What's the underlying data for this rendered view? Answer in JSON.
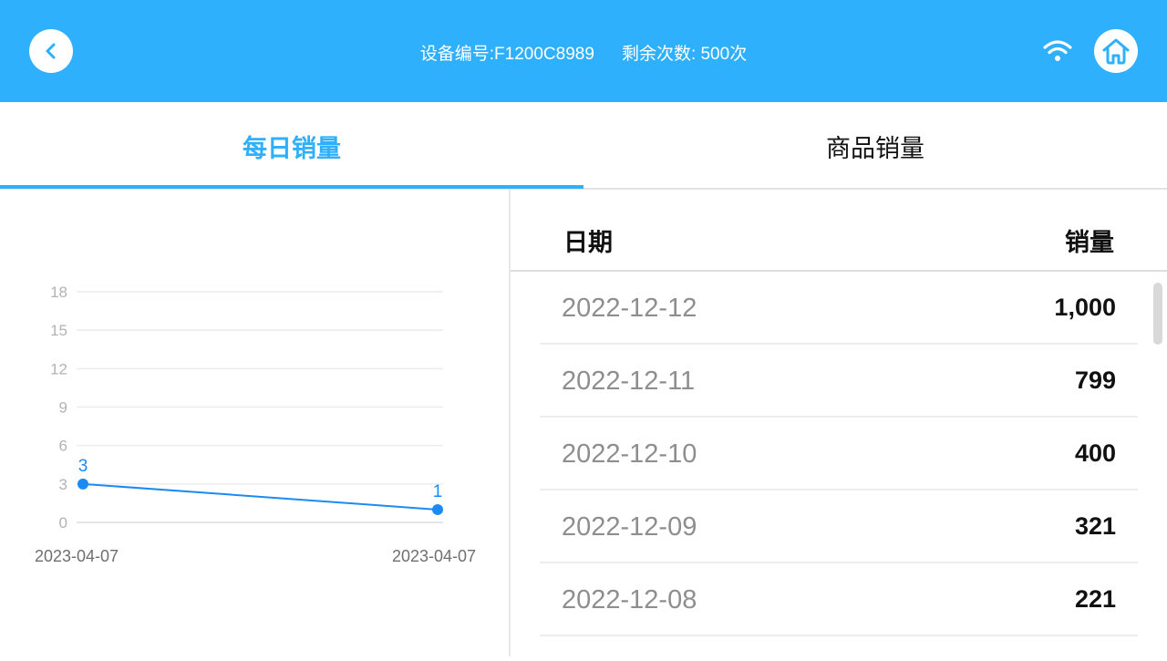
{
  "header": {
    "device_label": "设备编号:F1200C8989",
    "remaining_label": "剩余次数: 500次"
  },
  "tabs": [
    {
      "label": "每日销量",
      "active": true
    },
    {
      "label": "商品销量",
      "active": false
    }
  ],
  "colors": {
    "accent": "#2fb0fd",
    "line": "#1b8af2",
    "grid": "#ececec"
  },
  "chart_data": {
    "type": "line",
    "categories": [
      "2023-04-07",
      "2023-04-07"
    ],
    "series": [
      {
        "values": [
          3,
          1
        ]
      }
    ],
    "ylim": [
      0,
      18
    ],
    "yticks": [
      0,
      3,
      6,
      9,
      12,
      15,
      18
    ],
    "data_labels": [
      "3",
      "1"
    ],
    "grid": true
  },
  "table": {
    "headers": {
      "date": "日期",
      "sales": "销量"
    },
    "rows": [
      {
        "date": "2022-12-12",
        "sales": "1,000"
      },
      {
        "date": "2022-12-11",
        "sales": "799"
      },
      {
        "date": "2022-12-10",
        "sales": "400"
      },
      {
        "date": "2022-12-09",
        "sales": "321"
      },
      {
        "date": "2022-12-08",
        "sales": "221"
      }
    ]
  }
}
